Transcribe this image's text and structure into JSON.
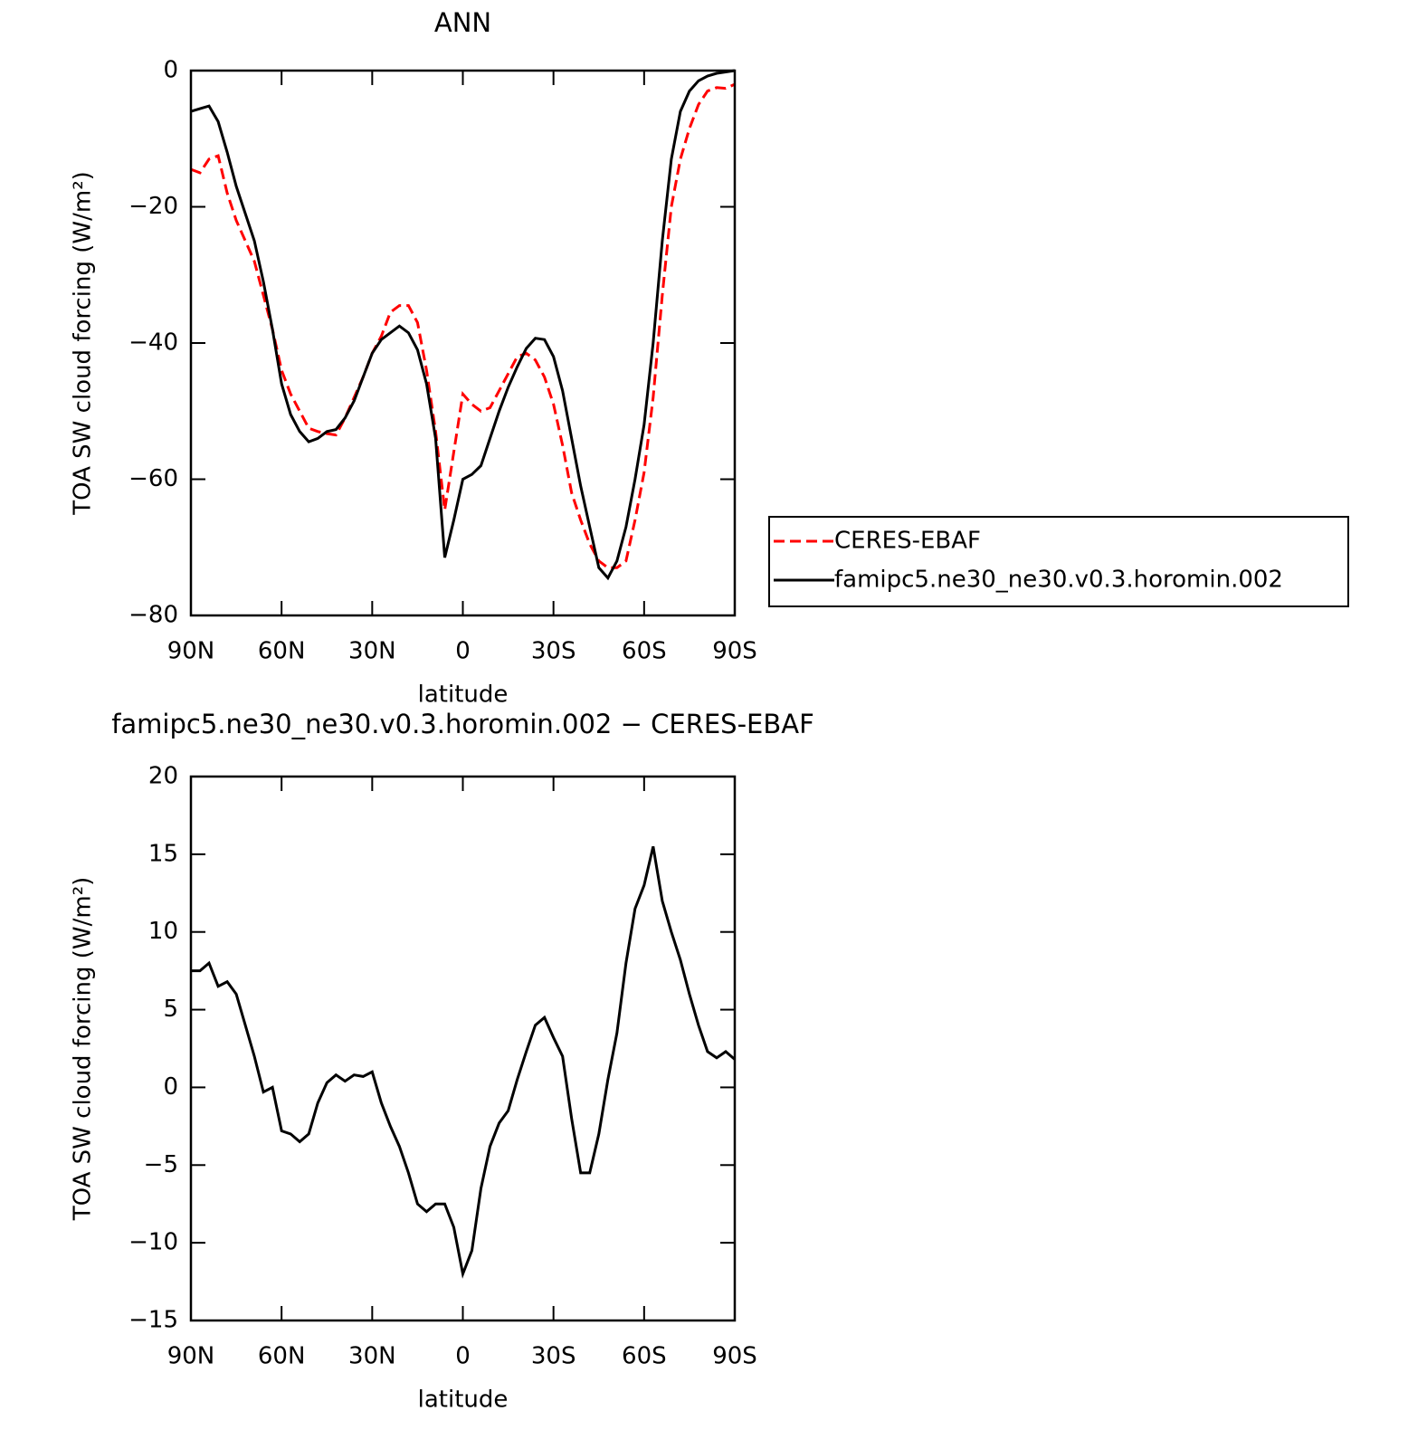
{
  "chart_data": [
    {
      "type": "line",
      "title": "ANN",
      "xlabel": "latitude",
      "ylabel": "TOA SW cloud forcing (W/m²)",
      "x": [
        90,
        87,
        84,
        81,
        78,
        75,
        72,
        69,
        66,
        63,
        60,
        57,
        54,
        51,
        48,
        45,
        42,
        39,
        36,
        33,
        30,
        27,
        24,
        21,
        18,
        15,
        12,
        9,
        6,
        3,
        0,
        -3,
        -6,
        -9,
        -12,
        -15,
        -18,
        -21,
        -24,
        -27,
        -30,
        -33,
        -36,
        -39,
        -42,
        -45,
        -48,
        -51,
        -54,
        -57,
        -60,
        -63,
        -66,
        -69,
        -72,
        -75,
        -78,
        -81,
        -84,
        -87,
        -90
      ],
      "series": [
        {
          "name": "CERES-EBAF",
          "color": "#ff0000",
          "linestyle": "dashed",
          "values": [
            -14.5,
            -15,
            -13,
            -12.5,
            -18,
            -22,
            -25,
            -28,
            -33,
            -38,
            -44,
            -47.5,
            -50,
            -52.5,
            -53,
            -53.3,
            -53.5,
            -51,
            -48,
            -45,
            -41.5,
            -39,
            -35.5,
            -34.5,
            -34.5,
            -37,
            -44,
            -53,
            -64.5,
            -56,
            -47.5,
            -49,
            -50,
            -49.5,
            -47,
            -44.5,
            -42,
            -41.5,
            -42.5,
            -45,
            -49,
            -55,
            -62,
            -66,
            -69.5,
            -72,
            -73,
            -73,
            -72,
            -66,
            -59,
            -48,
            -33,
            -20,
            -13,
            -8.5,
            -5,
            -3,
            -2.5,
            -2.6,
            -2
          ]
        },
        {
          "name": "famipc5.ne30_ne30.v0.3.horomin.002",
          "color": "#000000",
          "linestyle": "solid",
          "values": [
            -6,
            -5.6,
            -5.2,
            -7.5,
            -12,
            -17,
            -21,
            -25,
            -31,
            -38,
            -46,
            -50.5,
            -53,
            -54.5,
            -54,
            -53,
            -52.7,
            -51,
            -48.5,
            -45,
            -41.5,
            -39.5,
            -38.5,
            -37.5,
            -38.5,
            -41,
            -46,
            -54,
            -71.5,
            -66,
            -60,
            -59.3,
            -58,
            -54,
            -50,
            -46.5,
            -43.5,
            -40.8,
            -39.3,
            -39.5,
            -42,
            -47,
            -54,
            -61,
            -67,
            -73,
            -74.5,
            -72,
            -67,
            -60,
            -52,
            -40,
            -25,
            -13,
            -6,
            -3,
            -1.5,
            -0.8,
            -0.4,
            -0.2,
            0
          ]
        }
      ],
      "xlim": [
        90,
        -90
      ],
      "xticks": [
        {
          "value": 90,
          "label": "90N"
        },
        {
          "value": 60,
          "label": "60N"
        },
        {
          "value": 30,
          "label": "30N"
        },
        0,
        {
          "value": -30,
          "label": "30S"
        },
        {
          "value": -60,
          "label": "60S"
        },
        {
          "value": -90,
          "label": "90S"
        }
      ],
      "ylim": [
        -80,
        0
      ],
      "yticks": [
        {
          "value": -80,
          "label": "−80"
        },
        {
          "value": -60,
          "label": "−60"
        },
        {
          "value": -40,
          "label": "−40"
        },
        {
          "value": -20,
          "label": "−20"
        },
        0
      ],
      "legend": "right"
    },
    {
      "type": "line",
      "title": "famipc5.ne30_ne30.v0.3.horomin.002 − CERES-EBAF",
      "xlabel": "latitude",
      "ylabel": "TOA SW cloud forcing (W/m²)",
      "x": [
        90,
        87,
        84,
        81,
        78,
        75,
        72,
        69,
        66,
        63,
        60,
        57,
        54,
        51,
        48,
        45,
        42,
        39,
        36,
        33,
        30,
        27,
        24,
        21,
        18,
        15,
        12,
        9,
        6,
        3,
        0,
        -3,
        -6,
        -9,
        -12,
        -15,
        -18,
        -21,
        -24,
        -27,
        -30,
        -33,
        -36,
        -39,
        -42,
        -45,
        -48,
        -51,
        -54,
        -57,
        -60,
        -63,
        -66,
        -69,
        -72,
        -75,
        -78,
        -81,
        -84,
        -87,
        -90
      ],
      "values": [
        7.5,
        7.5,
        8,
        6.5,
        6.8,
        6,
        4,
        2,
        -0.3,
        0,
        -2.8,
        -3,
        -3.5,
        -3,
        -1,
        0.3,
        0.8,
        0.4,
        0.8,
        0.7,
        1,
        -1,
        -2.5,
        -3.8,
        -5.5,
        -7.5,
        -8,
        -7.5,
        -7.5,
        -9,
        -12,
        -10.5,
        -6.5,
        -3.8,
        -2.3,
        -1.5,
        0.5,
        2.3,
        4,
        4.5,
        3.2,
        2,
        -2,
        -5.5,
        -5.5,
        -3,
        0.5,
        3.5,
        8,
        11.5,
        13,
        15.5,
        12,
        10,
        8.2,
        6,
        4,
        2.3,
        1.9,
        2.3,
        1.8
      ],
      "color": "#000000",
      "xlim": [
        90,
        -90
      ],
      "xticks": [
        {
          "value": 90,
          "label": "90N"
        },
        {
          "value": 60,
          "label": "60N"
        },
        {
          "value": 30,
          "label": "30N"
        },
        0,
        {
          "value": -30,
          "label": "30S"
        },
        {
          "value": -60,
          "label": "60S"
        },
        {
          "value": -90,
          "label": "90S"
        }
      ],
      "ylim": [
        -15,
        20
      ],
      "yticks": [
        {
          "value": -15,
          "label": "−15"
        },
        {
          "value": -10,
          "label": "−10"
        },
        {
          "value": -5,
          "label": "−5"
        },
        0,
        5,
        10,
        15,
        20
      ]
    }
  ]
}
